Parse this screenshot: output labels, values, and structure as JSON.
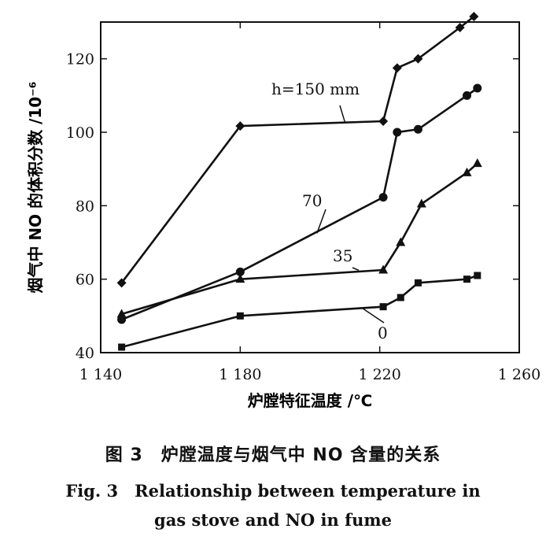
{
  "chart_data": {
    "type": "line",
    "xlabel": "炉膛特征温度 /℃",
    "ylabel": "烟气中 NO 的体积分数 /10⁻⁶",
    "xlim": [
      1140,
      1260
    ],
    "ylim": [
      40,
      130
    ],
    "xticks": [
      1140,
      1180,
      1220,
      1260
    ],
    "xtick_labels": [
      "1 140",
      "1 180",
      "1 220",
      "1 260"
    ],
    "yticks": [
      40,
      60,
      80,
      100,
      120
    ],
    "ytick_labels": [
      "40",
      "60",
      "80",
      "100",
      "120"
    ],
    "grid": false,
    "legend": "none",
    "series": [
      {
        "name": "h=150 mm",
        "marker": "diamond",
        "x": [
          1146,
          1180,
          1221,
          1225,
          1231,
          1243,
          1247
        ],
        "y": [
          59,
          101.7,
          103,
          117.5,
          120,
          128.5,
          131.5
        ]
      },
      {
        "name": "70",
        "marker": "circle",
        "x": [
          1146,
          1180,
          1221,
          1225,
          1231,
          1245,
          1248
        ],
        "y": [
          49,
          62,
          82.3,
          100,
          100.8,
          110,
          112
        ]
      },
      {
        "name": "35",
        "marker": "triangle",
        "x": [
          1146,
          1180,
          1221,
          1226,
          1232,
          1245,
          1248
        ],
        "y": [
          50.5,
          60,
          62.5,
          70,
          80.5,
          89,
          91.5
        ]
      },
      {
        "name": "0",
        "marker": "square",
        "x": [
          1146,
          1180,
          1221,
          1226,
          1231,
          1245,
          1248
        ],
        "y": [
          41.5,
          50,
          52.5,
          55,
          59,
          60,
          61
        ]
      }
    ]
  },
  "caption": {
    "chinese": "图 3　炉膛温度与烟气中 NO 含量的关系",
    "english_line1": "Fig. 3　Relationship between temperature in",
    "english_line2": "gas stove and NO in fume"
  },
  "colors": {
    "ink": "#111111",
    "background": "#ffffff"
  }
}
